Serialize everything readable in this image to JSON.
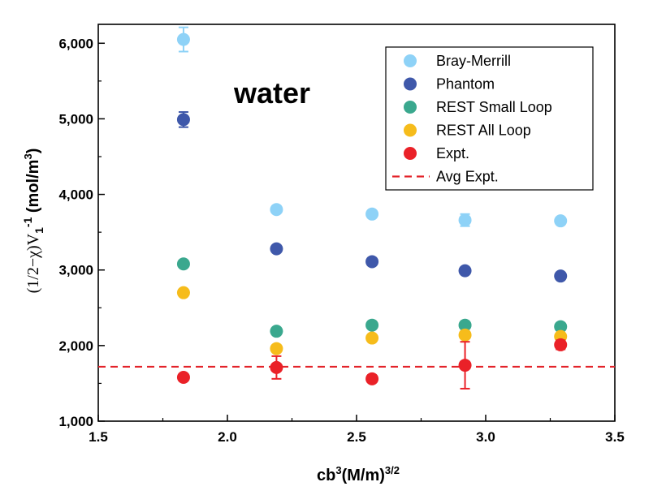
{
  "chart_data": {
    "type": "scatter",
    "annotation": "water",
    "xlabel": {
      "base": "cb",
      "sup1": "3",
      "mid": "(M/m)",
      "sup2": "3/2"
    },
    "ylabel": {
      "prefix": "(1/2−χ)V",
      "sub": "1",
      "sup": "-1",
      "suffix": " (mol/m",
      "sup2": "3",
      "close": ")"
    },
    "xlim": [
      1.5,
      3.5
    ],
    "ylim": [
      1000,
      6250
    ],
    "x_ticks": [
      1.5,
      2.0,
      2.5,
      3.0,
      3.5
    ],
    "x_tick_labels": [
      "1.5",
      "2.0",
      "2.5",
      "3.0",
      "3.5"
    ],
    "y_ticks": [
      1000,
      2000,
      3000,
      4000,
      5000,
      6000
    ],
    "y_tick_labels": [
      "1,000",
      "2,000",
      "3,000",
      "4,000",
      "5,000",
      "6,000"
    ],
    "grid": false,
    "legend_position": "top-right",
    "series": [
      {
        "name": "Bray-Merrill",
        "color": "#8ed2f7",
        "x": [
          1.83,
          2.19,
          2.56,
          2.92,
          3.29
        ],
        "y": [
          6050,
          3800,
          3740,
          3660,
          3650
        ],
        "err": [
          160,
          40,
          40,
          80,
          30
        ]
      },
      {
        "name": "Phantom",
        "color": "#3f58aa",
        "x": [
          1.83,
          2.19,
          2.56,
          2.92,
          3.29
        ],
        "y": [
          4990,
          3280,
          3110,
          2990,
          2920
        ],
        "err": [
          100,
          40,
          40,
          40,
          30
        ]
      },
      {
        "name": "REST Small Loop",
        "color": "#3aa88e",
        "x": [
          1.83,
          2.19,
          2.56,
          2.92,
          3.29
        ],
        "y": [
          3080,
          2190,
          2270,
          2270,
          2250
        ],
        "err": [
          30,
          30,
          30,
          30,
          30
        ]
      },
      {
        "name": "REST All Loop",
        "color": "#f6bc1b",
        "x": [
          1.83,
          2.19,
          2.56,
          2.92,
          3.29
        ],
        "y": [
          2700,
          1960,
          2100,
          2140,
          2120
        ],
        "err": [
          0,
          0,
          0,
          0,
          0
        ]
      },
      {
        "name": "Expt.",
        "color": "#ea2128",
        "x": [
          1.83,
          2.19,
          2.56,
          2.92,
          3.29
        ],
        "y": [
          1580,
          1710,
          1560,
          1740,
          2010
        ],
        "err": [
          0,
          150,
          0,
          310,
          60
        ]
      }
    ],
    "reference_lines": [
      {
        "name": "Avg Expt.",
        "y": 1720,
        "color": "#e3242b",
        "style": "dashed"
      }
    ]
  }
}
